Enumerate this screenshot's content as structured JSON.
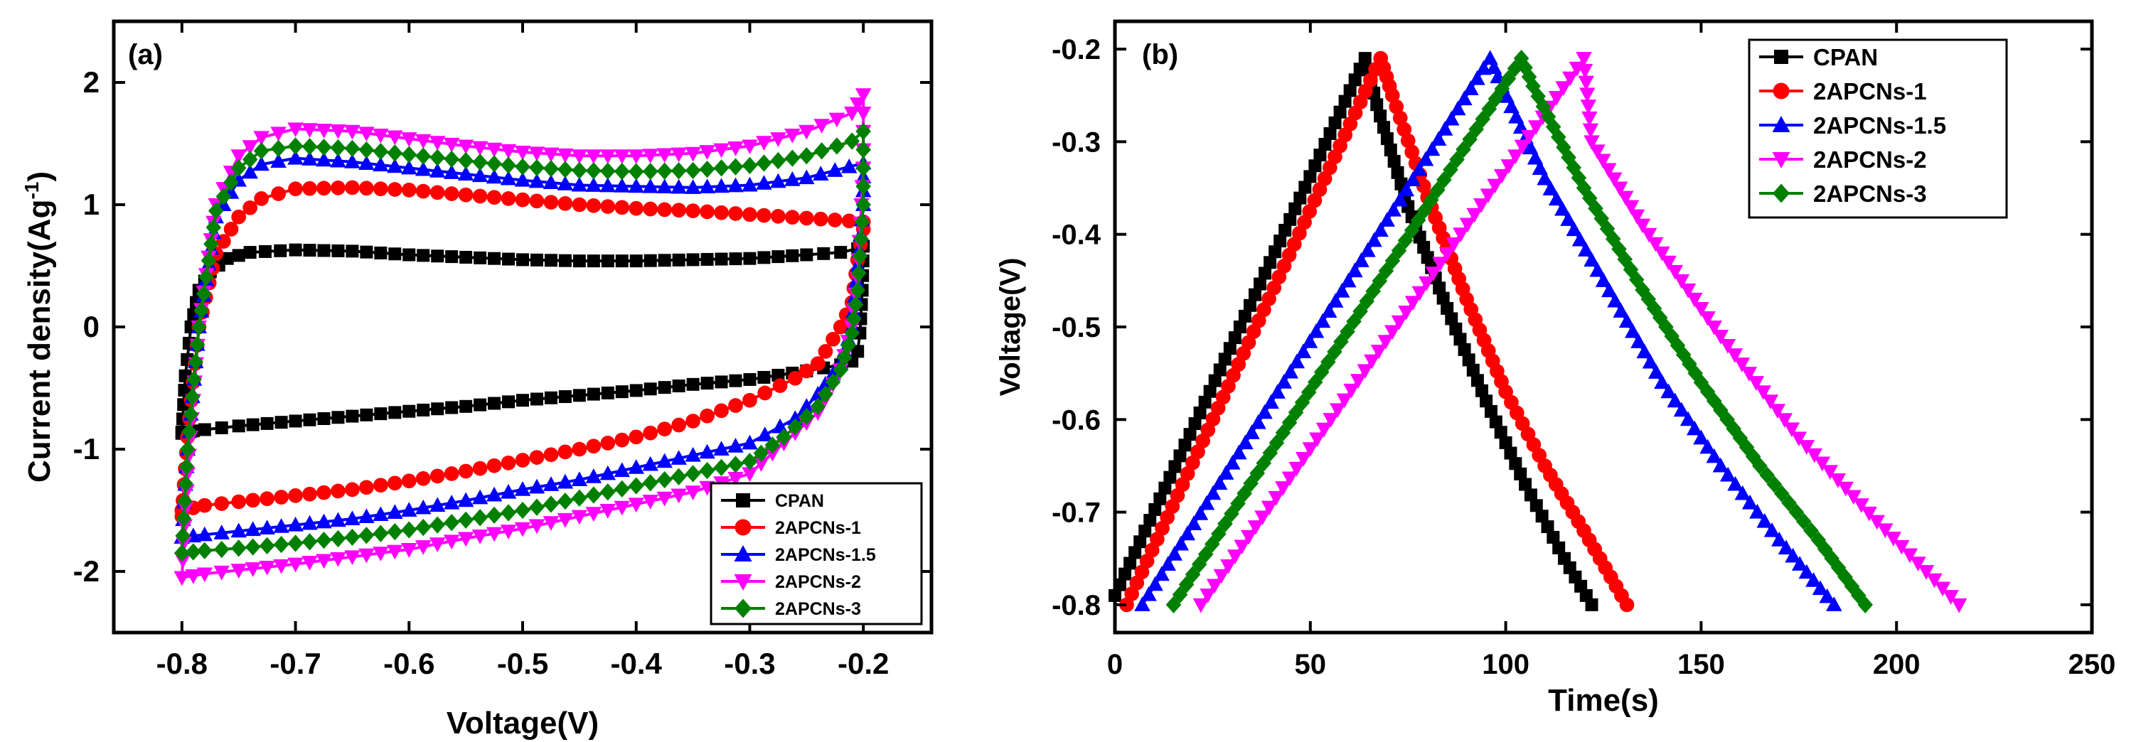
{
  "chart_data": [
    {
      "panel": "(a)",
      "type": "line",
      "title": "",
      "xlabel": "Voltage(V)",
      "ylabel": "Current density(Ag",
      "ylabel_sup": "-1",
      "ylabel_close": ")",
      "xlim": [
        -0.86,
        -0.14
      ],
      "ylim": [
        -2.5,
        2.5
      ],
      "xticks": [
        -0.8,
        -0.7,
        -0.6,
        -0.5,
        -0.4,
        -0.3,
        -0.2
      ],
      "xtick_labels": [
        "-0.8",
        "-0.7",
        "-0.6",
        "-0.5",
        "-0.4",
        "-0.3",
        "-0.2"
      ],
      "yticks": [
        -2,
        -1,
        0,
        1,
        2
      ],
      "ytick_labels": [
        "-2",
        "-1",
        "0",
        "1",
        "2"
      ],
      "legend_position": "bottom-right",
      "series": [
        {
          "name": "CPAN",
          "color": "#000000",
          "marker": "square",
          "x": [
            -0.8,
            -0.797,
            -0.792,
            -0.785,
            -0.775,
            -0.76,
            -0.74,
            -0.7,
            -0.65,
            -0.6,
            -0.55,
            -0.5,
            -0.45,
            -0.4,
            -0.35,
            -0.3,
            -0.25,
            -0.22,
            -0.205,
            -0.2,
            -0.201,
            -0.203,
            -0.205,
            -0.21,
            -0.22,
            -0.25,
            -0.3,
            -0.35,
            -0.4,
            -0.45,
            -0.5,
            -0.55,
            -0.6,
            -0.65,
            -0.7,
            -0.75,
            -0.78,
            -0.8,
            -0.8
          ],
          "y": [
            -0.87,
            -0.4,
            0.0,
            0.3,
            0.45,
            0.56,
            0.61,
            0.63,
            0.62,
            0.59,
            0.57,
            0.55,
            0.54,
            0.54,
            0.55,
            0.56,
            0.59,
            0.61,
            0.64,
            0.66,
            0.3,
            -0.05,
            -0.2,
            -0.28,
            -0.31,
            -0.36,
            -0.43,
            -0.47,
            -0.52,
            -0.56,
            -0.6,
            -0.65,
            -0.69,
            -0.73,
            -0.77,
            -0.81,
            -0.84,
            -0.86,
            -0.87
          ]
        },
        {
          "name": "2APCNs-1",
          "color": "#ff0000",
          "marker": "circle",
          "x": [
            -0.8,
            -0.795,
            -0.785,
            -0.77,
            -0.75,
            -0.73,
            -0.7,
            -0.65,
            -0.6,
            -0.55,
            -0.5,
            -0.45,
            -0.4,
            -0.35,
            -0.3,
            -0.25,
            -0.2,
            -0.2,
            -0.205,
            -0.21,
            -0.22,
            -0.24,
            -0.26,
            -0.3,
            -0.35,
            -0.4,
            -0.45,
            -0.5,
            -0.55,
            -0.6,
            -0.65,
            -0.7,
            -0.75,
            -0.78,
            -0.8
          ],
          "y": [
            -1.55,
            -0.9,
            0.0,
            0.6,
            0.9,
            1.05,
            1.13,
            1.14,
            1.12,
            1.08,
            1.04,
            1.0,
            0.97,
            0.95,
            0.92,
            0.89,
            0.86,
            0.8,
            0.55,
            0.2,
            0.0,
            -0.3,
            -0.42,
            -0.6,
            -0.77,
            -0.9,
            -1.0,
            -1.09,
            -1.18,
            -1.26,
            -1.33,
            -1.38,
            -1.43,
            -1.46,
            -1.5
          ]
        },
        {
          "name": "2APCNs-1.5",
          "color": "#0000ff",
          "marker": "triangle-up",
          "x": [
            -0.8,
            -0.795,
            -0.785,
            -0.77,
            -0.75,
            -0.73,
            -0.7,
            -0.65,
            -0.6,
            -0.55,
            -0.5,
            -0.45,
            -0.4,
            -0.35,
            -0.3,
            -0.25,
            -0.2,
            -0.2,
            -0.205,
            -0.21,
            -0.22,
            -0.24,
            -0.26,
            -0.3,
            -0.35,
            -0.4,
            -0.45,
            -0.5,
            -0.55,
            -0.6,
            -0.65,
            -0.7,
            -0.75,
            -0.78,
            -0.8
          ],
          "y": [
            -1.72,
            -1.0,
            0.0,
            0.9,
            1.2,
            1.33,
            1.38,
            1.35,
            1.3,
            1.25,
            1.2,
            1.16,
            1.15,
            1.14,
            1.16,
            1.22,
            1.34,
            1.0,
            0.5,
            0.0,
            -0.3,
            -0.55,
            -0.75,
            -0.95,
            -1.05,
            -1.15,
            -1.25,
            -1.33,
            -1.42,
            -1.5,
            -1.57,
            -1.62,
            -1.67,
            -1.7,
            -1.72
          ]
        },
        {
          "name": "2APCNs-2",
          "color": "#ff00ff",
          "marker": "triangle-down",
          "x": [
            -0.8,
            -0.795,
            -0.785,
            -0.77,
            -0.75,
            -0.73,
            -0.7,
            -0.65,
            -0.6,
            -0.55,
            -0.5,
            -0.45,
            -0.4,
            -0.35,
            -0.3,
            -0.25,
            -0.21,
            -0.2,
            -0.2,
            -0.205,
            -0.21,
            -0.22,
            -0.24,
            -0.27,
            -0.3,
            -0.35,
            -0.4,
            -0.45,
            -0.5,
            -0.55,
            -0.6,
            -0.65,
            -0.7,
            -0.75,
            -0.78,
            -0.8
          ],
          "y": [
            -2.05,
            -1.2,
            0.0,
            1.0,
            1.4,
            1.55,
            1.62,
            1.6,
            1.54,
            1.48,
            1.43,
            1.4,
            1.4,
            1.42,
            1.48,
            1.6,
            1.75,
            1.9,
            1.3,
            0.4,
            0.0,
            -0.35,
            -0.7,
            -0.95,
            -1.2,
            -1.35,
            -1.45,
            -1.55,
            -1.65,
            -1.73,
            -1.82,
            -1.88,
            -1.94,
            -1.99,
            -2.02,
            -2.05
          ]
        },
        {
          "name": "2APCNs-3",
          "color": "#008000",
          "marker": "diamond",
          "x": [
            -0.8,
            -0.795,
            -0.785,
            -0.77,
            -0.75,
            -0.73,
            -0.7,
            -0.65,
            -0.6,
            -0.55,
            -0.5,
            -0.45,
            -0.4,
            -0.35,
            -0.3,
            -0.25,
            -0.21,
            -0.2,
            -0.2,
            -0.205,
            -0.21,
            -0.22,
            -0.24,
            -0.27,
            -0.3,
            -0.35,
            -0.4,
            -0.45,
            -0.5,
            -0.55,
            -0.6,
            -0.65,
            -0.7,
            -0.75,
            -0.78,
            -0.8
          ],
          "y": [
            -1.85,
            -1.0,
            0.0,
            0.95,
            1.3,
            1.44,
            1.48,
            1.46,
            1.41,
            1.36,
            1.31,
            1.28,
            1.27,
            1.28,
            1.32,
            1.4,
            1.52,
            1.6,
            1.0,
            0.3,
            -0.05,
            -0.35,
            -0.65,
            -0.9,
            -1.1,
            -1.2,
            -1.3,
            -1.4,
            -1.5,
            -1.58,
            -1.66,
            -1.72,
            -1.77,
            -1.81,
            -1.83,
            -1.85
          ]
        }
      ]
    },
    {
      "panel": "(b)",
      "type": "line",
      "title": "",
      "xlabel": "Time(s)",
      "ylabel": "Voltage(V)",
      "xlim": [
        0,
        250
      ],
      "ylim": [
        -0.83,
        -0.17
      ],
      "xticks": [
        0,
        50,
        100,
        150,
        200,
        250
      ],
      "xtick_labels": [
        "0",
        "50",
        "100",
        "150",
        "200",
        "250"
      ],
      "yticks": [
        -0.8,
        -0.7,
        -0.6,
        -0.5,
        -0.4,
        -0.3,
        -0.2
      ],
      "ytick_labels": [
        "-0.8",
        "-0.7",
        "-0.6",
        "-0.5",
        "-0.4",
        "-0.3",
        "-0.2"
      ],
      "legend_position": "top-right",
      "series": [
        {
          "name": "CPAN",
          "color": "#000000",
          "marker": "square",
          "x": [
            0,
            64,
            67,
            75,
            85,
            95,
            105,
            115,
            122
          ],
          "y": [
            -0.79,
            -0.21,
            -0.26,
            -0.37,
            -0.48,
            -0.58,
            -0.67,
            -0.75,
            -0.8
          ]
        },
        {
          "name": "2APCNs-1",
          "color": "#ff0000",
          "marker": "circle",
          "x": [
            3,
            68,
            71,
            80,
            90,
            100,
            110,
            120,
            131
          ],
          "y": [
            -0.8,
            -0.21,
            -0.25,
            -0.36,
            -0.47,
            -0.57,
            -0.65,
            -0.72,
            -0.8
          ]
        },
        {
          "name": "2APCNs-1.5",
          "color": "#0000ff",
          "marker": "triangle-up",
          "x": [
            7,
            96,
            99,
            110,
            125,
            140,
            155,
            170,
            184
          ],
          "y": [
            -0.8,
            -0.21,
            -0.24,
            -0.34,
            -0.45,
            -0.56,
            -0.65,
            -0.73,
            -0.8
          ]
        },
        {
          "name": "2APCNs-2",
          "color": "#ff00ff",
          "marker": "triangle-down",
          "x": [
            22,
            120,
            122,
            135,
            155,
            175,
            195,
            216
          ],
          "y": [
            -0.8,
            -0.21,
            -0.3,
            -0.39,
            -0.51,
            -0.62,
            -0.71,
            -0.8
          ]
        },
        {
          "name": "2APCNs-3",
          "color": "#008000",
          "marker": "diamond",
          "x": [
            15,
            104,
            107,
            120,
            135,
            150,
            165,
            180,
            192
          ],
          "y": [
            -0.8,
            -0.21,
            -0.24,
            -0.35,
            -0.46,
            -0.56,
            -0.65,
            -0.73,
            -0.8
          ]
        }
      ]
    }
  ]
}
